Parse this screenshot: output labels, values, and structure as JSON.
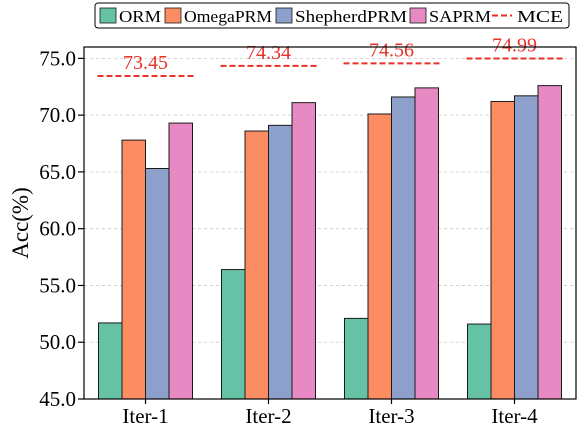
{
  "chart_data": {
    "type": "bar",
    "title": "",
    "xlabel": "",
    "ylabel": "Acc(%)",
    "ylim": [
      45.0,
      76.0
    ],
    "yticks": [
      "45.0",
      "50.0",
      "55.0",
      "60.0",
      "65.0",
      "70.0",
      "75.0"
    ],
    "categories": [
      "Iter-1",
      "Iter-2",
      "Iter-3",
      "Iter-4"
    ],
    "grid": true,
    "legend_position": "top",
    "series": [
      {
        "name": "ORM",
        "color": "#66c2a5",
        "values": [
          51.7,
          56.4,
          52.1,
          51.6
        ]
      },
      {
        "name": "OmegaPRM",
        "color": "#fc8d62",
        "values": [
          67.8,
          68.6,
          70.1,
          71.2
        ]
      },
      {
        "name": "ShepherdPRM",
        "color": "#8da0cb",
        "values": [
          65.3,
          69.1,
          71.6,
          71.7
        ]
      },
      {
        "name": "SAPRM",
        "color": "#e78ac3",
        "values": [
          69.3,
          71.1,
          72.4,
          72.6
        ]
      }
    ],
    "reference": {
      "name": "MCE",
      "color": "#e8302a",
      "values": [
        73.45,
        74.34,
        74.56,
        74.99
      ],
      "labels": [
        "73.45",
        "74.34",
        "74.56",
        "74.99"
      ]
    }
  }
}
